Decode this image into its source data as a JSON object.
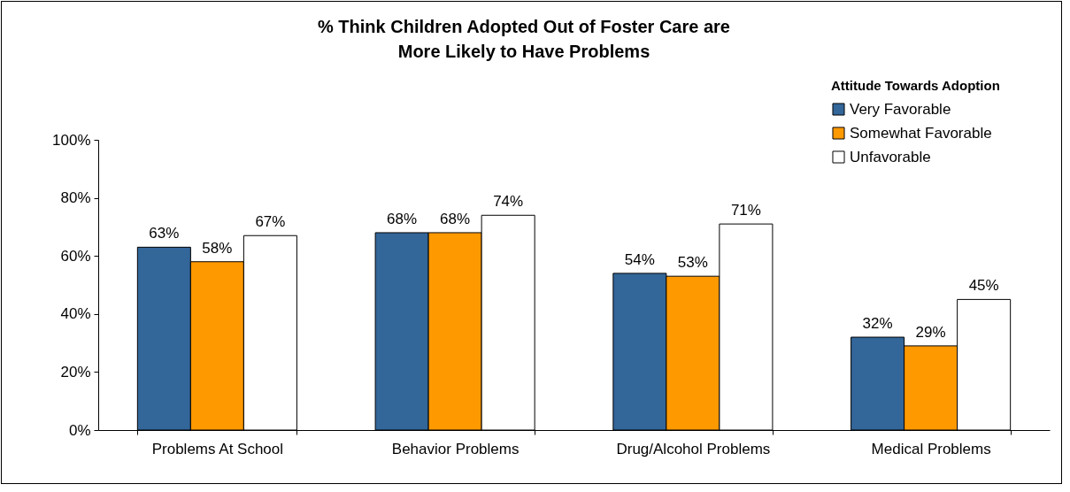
{
  "chart_data": {
    "type": "bar",
    "title": "% Think Children Adopted Out of Foster Care are More Likely to Have Problems",
    "legend_title": "Attitude Towards Adoption",
    "categories": [
      "Problems At School",
      "Behavior Problems",
      "Drug/Alcohol Problems",
      "Medical Problems"
    ],
    "series": [
      {
        "name": "Very Favorable",
        "color": "#336699",
        "values": [
          63,
          68,
          54,
          32
        ],
        "value_labels": [
          "63%",
          "68%",
          "54%",
          "32%"
        ]
      },
      {
        "name": "Somewhat Favorable",
        "color": "#ff9900",
        "values": [
          58,
          68,
          53,
          29
        ],
        "value_labels": [
          "58%",
          "68%",
          "53%",
          "29%"
        ]
      },
      {
        "name": "Unfavorable",
        "color": "#ffffff",
        "values": [
          67,
          74,
          71,
          45
        ],
        "value_labels": [
          "67%",
          "74%",
          "71%",
          "45%"
        ]
      }
    ],
    "ylim": [
      0,
      100
    ],
    "yticks": [
      {
        "value": 0,
        "label": "0%"
      },
      {
        "value": 20,
        "label": "20%"
      },
      {
        "value": 40,
        "label": "40%"
      },
      {
        "value": 60,
        "label": "60%"
      },
      {
        "value": 80,
        "label": "80%"
      },
      {
        "value": 100,
        "label": "100%"
      }
    ],
    "grid": false,
    "legend": "top right"
  }
}
